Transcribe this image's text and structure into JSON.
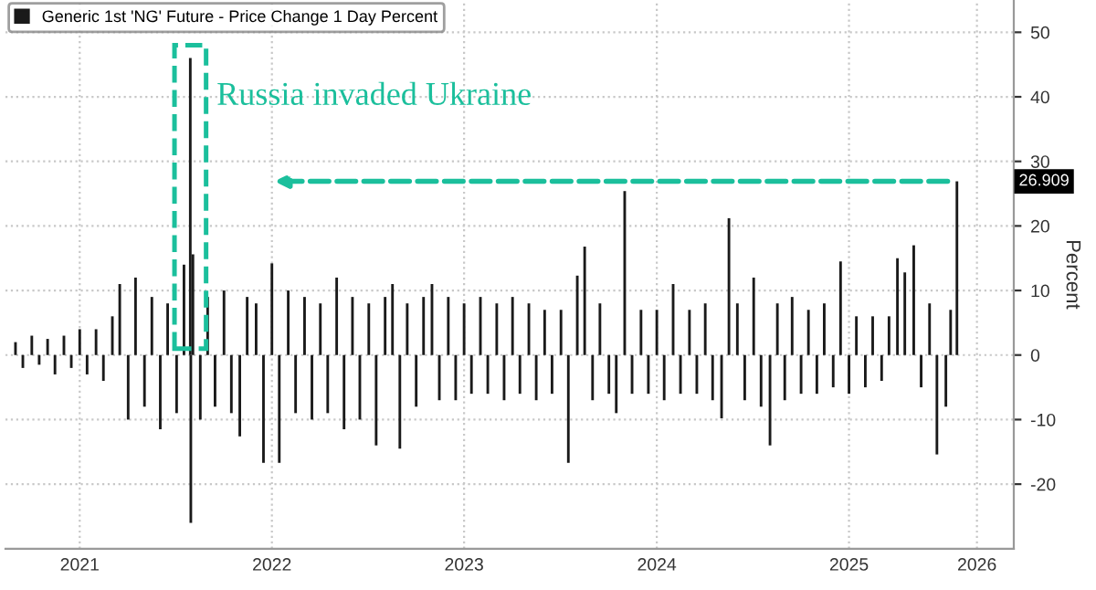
{
  "chart_data": {
    "type": "bar",
    "legend": "top left",
    "grid": true,
    "ylabel": "Percent",
    "ylim": [
      -30,
      55
    ],
    "yticks": [
      -20,
      -10,
      0,
      10,
      20,
      30,
      40,
      50
    ],
    "xlim": [
      "2021-02-10",
      "2026-05-10"
    ],
    "xticks": [
      {
        "value": "2021-07-01",
        "label": "2021"
      },
      {
        "value": "2022-07-01",
        "label": "2022"
      },
      {
        "value": "2023-07-01",
        "label": "2023"
      },
      {
        "value": "2024-07-01",
        "label": "2024"
      },
      {
        "value": "2025-07-01",
        "label": "2025"
      },
      {
        "value": "2026-03-01",
        "label": "2026"
      }
    ],
    "annotations": [
      {
        "text": "Russia invaded Ukraine",
        "x": "2022-01-27",
        "y": 46
      },
      "26.909"
    ],
    "series": [
      {
        "name": "Generic 1st 'NG' Future - Price Change 1 Day Percent",
        "color": "#1a1a1a",
        "x": [
          "2021-03-01",
          "2021-03-15",
          "2021-04-01",
          "2021-04-15",
          "2021-05-01",
          "2021-05-15",
          "2021-06-01",
          "2021-06-15",
          "2021-07-01",
          "2021-07-15",
          "2021-08-01",
          "2021-08-15",
          "2021-09-01",
          "2021-09-15",
          "2021-10-01",
          "2021-10-15",
          "2021-11-01",
          "2021-11-15",
          "2021-12-01",
          "2021-12-15",
          "2022-01-01",
          "2022-01-15",
          "2022-01-27",
          "2022-01-28",
          "2022-02-01",
          "2022-02-15",
          "2022-03-01",
          "2022-03-15",
          "2022-04-01",
          "2022-04-15",
          "2022-05-01",
          "2022-05-15",
          "2022-06-01",
          "2022-06-15",
          "2022-07-01",
          "2022-07-15",
          "2022-08-01",
          "2022-08-15",
          "2022-09-01",
          "2022-09-15",
          "2022-10-01",
          "2022-10-15",
          "2022-11-01",
          "2022-11-15",
          "2022-12-01",
          "2022-12-15",
          "2023-01-01",
          "2023-01-15",
          "2023-02-01",
          "2023-02-15",
          "2023-03-01",
          "2023-03-15",
          "2023-04-01",
          "2023-04-15",
          "2023-05-01",
          "2023-05-15",
          "2023-06-01",
          "2023-06-15",
          "2023-07-01",
          "2023-07-15",
          "2023-08-01",
          "2023-08-15",
          "2023-09-01",
          "2023-09-15",
          "2023-10-01",
          "2023-10-15",
          "2023-11-01",
          "2023-11-15",
          "2023-12-01",
          "2023-12-15",
          "2024-01-01",
          "2024-01-15",
          "2024-02-01",
          "2024-02-15",
          "2024-03-01",
          "2024-03-15",
          "2024-04-01",
          "2024-04-15",
          "2024-05-01",
          "2024-05-15",
          "2024-06-01",
          "2024-06-15",
          "2024-07-01",
          "2024-07-15",
          "2024-08-01",
          "2024-08-15",
          "2024-09-01",
          "2024-09-15",
          "2024-10-01",
          "2024-10-15",
          "2024-11-01",
          "2024-11-15",
          "2024-12-01",
          "2024-12-15",
          "2025-01-01",
          "2025-01-15",
          "2025-02-01",
          "2025-02-15",
          "2025-03-01",
          "2025-03-15",
          "2025-04-01",
          "2025-04-15",
          "2025-05-01",
          "2025-05-15",
          "2025-06-01",
          "2025-06-15",
          "2025-07-01",
          "2025-07-15",
          "2025-08-01",
          "2025-08-15",
          "2025-09-01",
          "2025-09-15",
          "2025-10-01",
          "2025-10-15",
          "2025-11-01",
          "2025-11-15",
          "2025-12-01",
          "2025-12-15",
          "2026-01-01",
          "2026-01-10",
          "2026-01-22"
        ],
        "values": [
          2,
          -2,
          3,
          -1.5,
          2.5,
          -3,
          3,
          -2,
          4,
          -3,
          4,
          -4,
          6,
          11,
          -10,
          12,
          -8,
          9,
          -11.5,
          8,
          -9,
          14,
          46,
          -26,
          15.6,
          -10,
          9,
          -8,
          10,
          -9,
          -12.6,
          9,
          8,
          -16.7,
          14.2,
          -16.7,
          10,
          -9,
          9,
          -10,
          8,
          -9,
          12,
          -11.5,
          9,
          -10,
          8,
          -14,
          9,
          11,
          -14.5,
          8,
          -8,
          9,
          11,
          -7,
          9,
          -7,
          8,
          -6,
          9,
          -6,
          8,
          -7,
          9,
          -6,
          8,
          -7,
          7,
          -6,
          7,
          -16.7,
          12.3,
          16.8,
          -7,
          8,
          -6,
          -9,
          25.4,
          -6,
          7,
          -6,
          7,
          -7,
          11,
          -6,
          7,
          -6,
          8,
          -7,
          -9.8,
          21.2,
          8,
          -7,
          12,
          -8,
          -14,
          8,
          -7,
          9,
          -6,
          7,
          -6,
          8,
          -5,
          14.5,
          -6,
          6,
          -5,
          6,
          -4,
          6,
          15,
          12.8,
          17,
          -5,
          8,
          -15.4,
          -8,
          7,
          26.909
        ]
      }
    ]
  }
}
